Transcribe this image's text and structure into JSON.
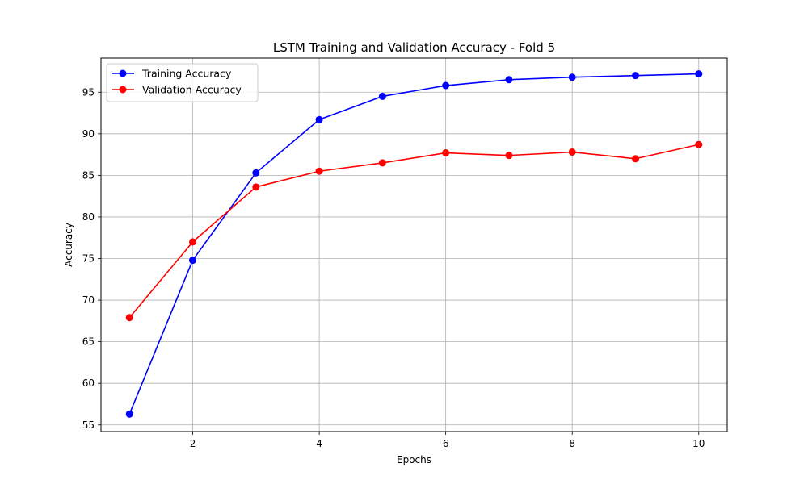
{
  "chart_data": {
    "type": "line",
    "title": "LSTM Training and Validation Accuracy - Fold 5",
    "xlabel": "Epochs",
    "ylabel": "Accuracy",
    "x": [
      1,
      2,
      3,
      4,
      5,
      6,
      7,
      8,
      9,
      10
    ],
    "xlim": [
      0.55,
      10.45
    ],
    "ylim": [
      54.2,
      99.1
    ],
    "xticks": [
      2,
      4,
      6,
      8,
      10
    ],
    "yticks": [
      55,
      60,
      65,
      70,
      75,
      80,
      85,
      90,
      95
    ],
    "grid": true,
    "legend_position": "top-left",
    "series": [
      {
        "name": "Training Accuracy",
        "color": "#0000ff",
        "marker": "circle",
        "values": [
          56.3,
          74.8,
          85.3,
          91.7,
          94.5,
          95.8,
          96.5,
          96.8,
          97.0,
          97.2
        ]
      },
      {
        "name": "Validation Accuracy",
        "color": "#ff0000",
        "marker": "circle",
        "values": [
          67.9,
          77.0,
          83.6,
          85.5,
          86.5,
          87.7,
          87.4,
          87.8,
          87.0,
          88.7
        ]
      }
    ]
  }
}
